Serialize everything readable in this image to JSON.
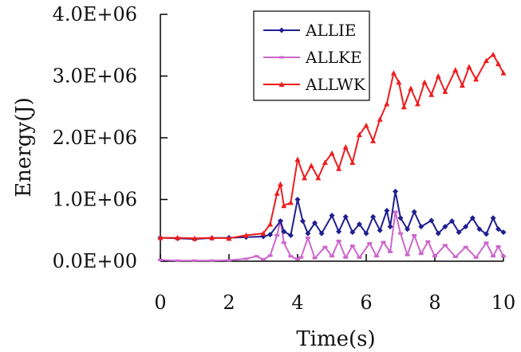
{
  "chart_data": {
    "type": "line",
    "title": "",
    "xlabel": "Time(s)",
    "ylabel": "Energy(J)",
    "xlim": [
      0,
      10
    ],
    "ylim": [
      0,
      4000000
    ],
    "x_ticks": [
      0,
      2,
      4,
      6,
      8,
      10
    ],
    "x_tick_labels": [
      "0",
      "2",
      "4",
      "6",
      "8",
      "10"
    ],
    "y_ticks": [
      0,
      1000000,
      2000000,
      3000000,
      4000000
    ],
    "y_tick_labels": [
      "0.0E+00",
      "1.0E+06",
      "2.0E+06",
      "3.0E+06",
      "4.0E+06"
    ],
    "grid": false,
    "legend_position": "top-right",
    "series": [
      {
        "name": "ALLIE",
        "color": "#1f1f8f",
        "marker": "diamond",
        "points": [
          [
            0,
            380000
          ],
          [
            0.5,
            370000
          ],
          [
            1,
            360000
          ],
          [
            1.5,
            375000
          ],
          [
            2,
            380000
          ],
          [
            2.5,
            390000
          ],
          [
            3,
            400000
          ],
          [
            3.2,
            430000
          ],
          [
            3.5,
            650000
          ],
          [
            3.6,
            480000
          ],
          [
            3.8,
            420000
          ],
          [
            4,
            1000000
          ],
          [
            4.15,
            650000
          ],
          [
            4.3,
            450000
          ],
          [
            4.5,
            620000
          ],
          [
            4.7,
            450000
          ],
          [
            5,
            740000
          ],
          [
            5.2,
            480000
          ],
          [
            5.4,
            720000
          ],
          [
            5.6,
            470000
          ],
          [
            5.8,
            600000
          ],
          [
            6,
            450000
          ],
          [
            6.2,
            720000
          ],
          [
            6.4,
            500000
          ],
          [
            6.6,
            820000
          ],
          [
            6.7,
            560000
          ],
          [
            6.85,
            1130000
          ],
          [
            7,
            700000
          ],
          [
            7.2,
            520000
          ],
          [
            7.4,
            800000
          ],
          [
            7.6,
            560000
          ],
          [
            7.9,
            660000
          ],
          [
            8.1,
            450000
          ],
          [
            8.3,
            560000
          ],
          [
            8.5,
            650000
          ],
          [
            8.7,
            470000
          ],
          [
            8.9,
            560000
          ],
          [
            9.1,
            700000
          ],
          [
            9.3,
            520000
          ],
          [
            9.5,
            440000
          ],
          [
            9.7,
            700000
          ],
          [
            9.85,
            520000
          ],
          [
            10,
            470000
          ]
        ]
      },
      {
        "name": "ALLKE",
        "color": "#cc66cc",
        "marker": "dash",
        "points": [
          [
            0,
            20000
          ],
          [
            0.5,
            10000
          ],
          [
            1,
            10000
          ],
          [
            1.5,
            10000
          ],
          [
            2,
            15000
          ],
          [
            2.5,
            40000
          ],
          [
            2.8,
            80000
          ],
          [
            3,
            30000
          ],
          [
            3.2,
            90000
          ],
          [
            3.4,
            420000
          ],
          [
            3.5,
            660000
          ],
          [
            3.6,
            300000
          ],
          [
            3.8,
            80000
          ],
          [
            4,
            30000
          ],
          [
            4.1,
            60000
          ],
          [
            4.3,
            380000
          ],
          [
            4.5,
            50000
          ],
          [
            4.8,
            230000
          ],
          [
            5,
            80000
          ],
          [
            5.2,
            330000
          ],
          [
            5.4,
            60000
          ],
          [
            5.6,
            250000
          ],
          [
            5.8,
            60000
          ],
          [
            6.1,
            290000
          ],
          [
            6.3,
            80000
          ],
          [
            6.5,
            310000
          ],
          [
            6.7,
            150000
          ],
          [
            6.85,
            800000
          ],
          [
            7,
            450000
          ],
          [
            7.2,
            100000
          ],
          [
            7.4,
            420000
          ],
          [
            7.6,
            120000
          ],
          [
            7.8,
            320000
          ],
          [
            8,
            80000
          ],
          [
            8.3,
            260000
          ],
          [
            8.6,
            70000
          ],
          [
            8.9,
            230000
          ],
          [
            9.2,
            60000
          ],
          [
            9.5,
            300000
          ],
          [
            9.7,
            80000
          ],
          [
            9.85,
            240000
          ],
          [
            10,
            80000
          ]
        ]
      },
      {
        "name": "ALLWK",
        "color": "#ee1c1c",
        "marker": "triangle",
        "points": [
          [
            0,
            380000
          ],
          [
            0.5,
            380000
          ],
          [
            1,
            370000
          ],
          [
            1.5,
            380000
          ],
          [
            2,
            370000
          ],
          [
            2.5,
            420000
          ],
          [
            3,
            450000
          ],
          [
            3.2,
            600000
          ],
          [
            3.4,
            1100000
          ],
          [
            3.5,
            1250000
          ],
          [
            3.6,
            900000
          ],
          [
            3.8,
            950000
          ],
          [
            4,
            1650000
          ],
          [
            4.2,
            1350000
          ],
          [
            4.4,
            1550000
          ],
          [
            4.6,
            1350000
          ],
          [
            4.8,
            1600000
          ],
          [
            5,
            1750000
          ],
          [
            5.2,
            1500000
          ],
          [
            5.4,
            1850000
          ],
          [
            5.6,
            1600000
          ],
          [
            5.8,
            2050000
          ],
          [
            6,
            2200000
          ],
          [
            6.2,
            1950000
          ],
          [
            6.4,
            2300000
          ],
          [
            6.6,
            2550000
          ],
          [
            6.8,
            3050000
          ],
          [
            6.95,
            2900000
          ],
          [
            7.1,
            2500000
          ],
          [
            7.3,
            2800000
          ],
          [
            7.5,
            2550000
          ],
          [
            7.7,
            2900000
          ],
          [
            7.9,
            2700000
          ],
          [
            8.1,
            3000000
          ],
          [
            8.3,
            2750000
          ],
          [
            8.6,
            3100000
          ],
          [
            8.8,
            2850000
          ],
          [
            9,
            3150000
          ],
          [
            9.2,
            2950000
          ],
          [
            9.5,
            3250000
          ],
          [
            9.7,
            3350000
          ],
          [
            9.85,
            3200000
          ],
          [
            10,
            3050000
          ]
        ]
      }
    ]
  }
}
